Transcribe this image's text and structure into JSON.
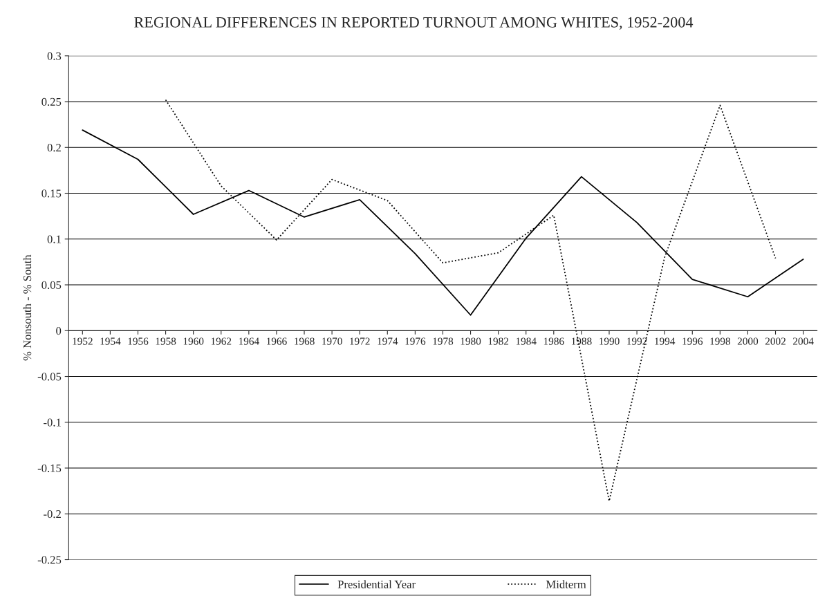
{
  "chart_data": {
    "type": "line",
    "title": "REGIONAL DIFFERENCES IN REPORTED TURNOUT AMONG WHITES, 1952-2004",
    "ylabel": "% Nonsouth - % South",
    "categories": [
      "1952",
      "1954",
      "1956",
      "1958",
      "1960",
      "1962",
      "1964",
      "1966",
      "1968",
      "1970",
      "1972",
      "1974",
      "1976",
      "1978",
      "1980",
      "1982",
      "1984",
      "1986",
      "1988",
      "1990",
      "1992",
      "1994",
      "1996",
      "1998",
      "2000",
      "2002",
      "2004"
    ],
    "series": [
      {
        "name": "Presidential Year",
        "color": "#000000",
        "line_style": "solid",
        "values": [
          0.219,
          null,
          0.187,
          null,
          0.127,
          null,
          0.153,
          null,
          0.124,
          null,
          0.143,
          null,
          0.084,
          null,
          0.017,
          null,
          0.101,
          null,
          0.168,
          null,
          0.118,
          null,
          0.056,
          null,
          0.037,
          null,
          0.078
        ]
      },
      {
        "name": "Midterm",
        "color": "#000000",
        "line_style": "dotted",
        "values": [
          null,
          null,
          null,
          0.252,
          null,
          0.158,
          null,
          0.099,
          null,
          0.165,
          null,
          0.142,
          null,
          0.074,
          null,
          0.085,
          null,
          0.126,
          null,
          -0.186,
          null,
          0.08,
          null,
          0.246,
          null,
          0.079,
          null
        ]
      }
    ],
    "ylim": [
      -0.25,
      0.3
    ],
    "yticks": [
      -0.25,
      -0.2,
      -0.15,
      -0.1,
      -0.05,
      0,
      0.05,
      0.1,
      0.15,
      0.2,
      0.25,
      0.3
    ],
    "grid": "y",
    "legend": "bottom",
    "marker": "none"
  }
}
